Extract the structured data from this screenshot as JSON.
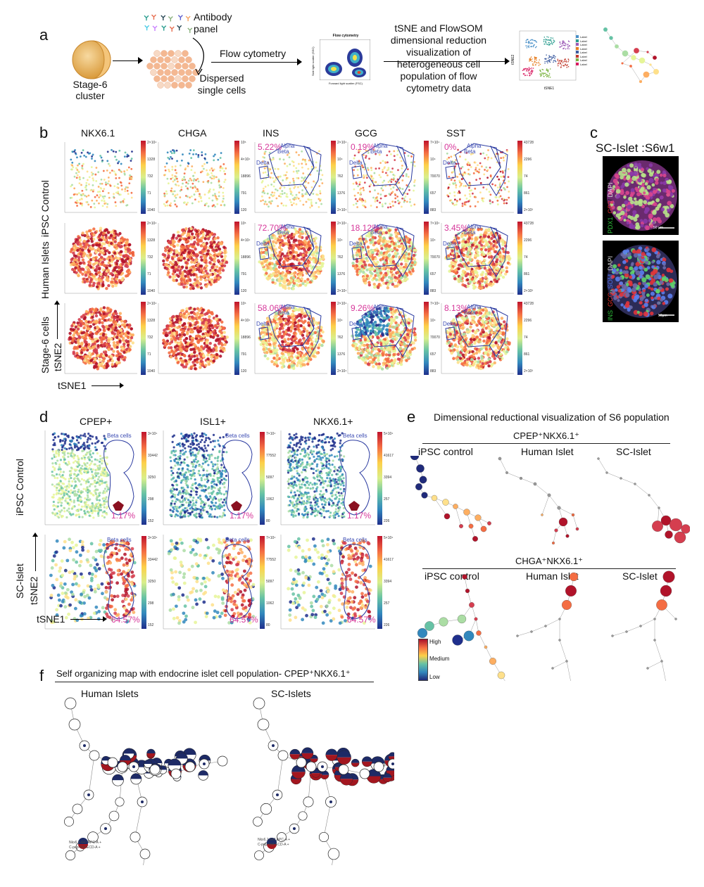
{
  "panel_a": {
    "letter": "a",
    "stage6_label": "Stage-6 cluster",
    "antibody_label": "Antibody panel",
    "flow_label": "Flow cytometry",
    "dispersed_label": "Dispersed single cells",
    "flow_plot_title": "Flow cytometry",
    "flow_plot_xlabel": "Forward light scatter (FSC)",
    "flow_plot_ylabel": "Side light scatter (SSC)",
    "tsne_text": "tSNE and FlowSOM dimensional reduction visualization of heterogeneous cell population of flow cytometry data",
    "tsne_mini_xlabel": "tSNE1",
    "tsne_mini_ylabel": "tSNE2",
    "legend_item": "Label"
  },
  "panel_b": {
    "letter": "b",
    "columns": [
      "NKX6.1",
      "CHGA",
      "INS",
      "GCG",
      "SST"
    ],
    "rows": [
      "iPSC Control",
      "Human Islets",
      "Stage-6 cells"
    ],
    "percentages": {
      "INS": [
        "5.22%",
        "72.70%",
        "58.06%"
      ],
      "GCG": [
        "0.19%",
        "18.12%",
        "9.26%"
      ],
      "SST": [
        "0%",
        "3.45%",
        "8.13%"
      ]
    },
    "gate_labels": [
      "Alpha",
      "Beta",
      "Delta"
    ],
    "xaxis": "tSNE1",
    "yaxis": "tSNE2"
  },
  "panel_c": {
    "letter": "c",
    "title": "SC-Islet :S6w1",
    "label_top": "PDX1/ GP2/ DAPI",
    "label_bottom": "INS/ GCG/ SOM/ DAPI",
    "scale_top": "50 µm",
    "scale_bottom": "50µm"
  },
  "panel_d": {
    "letter": "d",
    "columns": [
      "CPEP+",
      "ISL1+",
      "NKX6.1+"
    ],
    "rows": [
      "iPSC Control",
      "SC-Islet"
    ],
    "gate_label": "Beta cells",
    "percentages": [
      "1.17%",
      "64.57%"
    ],
    "xaxis": "tSNE1",
    "yaxis": "tSNE2"
  },
  "panel_e": {
    "letter": "e",
    "title": "Dimensional reductional visualization of S6  population",
    "group1": "CPEP⁺NKX6.1⁺",
    "group2": "CHGA⁺NKX6.1⁺",
    "columns": [
      "iPSC control",
      "Human Islet",
      "SC-Islet"
    ],
    "legend": [
      "High",
      "Medium",
      "Low"
    ]
  },
  "panel_f": {
    "letter": "f",
    "title": "Self organizing map with endocrine islet cell population- CPEP⁺NKX6.1⁺",
    "columns": [
      "Human Islets",
      "SC-Islets"
    ],
    "legend_line1": "Nkx6.1-647 APC-A +",
    "legend_line2": "C-pep-594 ECD-A +"
  },
  "colors": {
    "gate": "#2a3aa0",
    "pct": "#d6379a",
    "high": "#c0132c",
    "low": "#1f2f8c",
    "positive_red": "#a3161f",
    "positive_navy": "#1d2a66"
  }
}
